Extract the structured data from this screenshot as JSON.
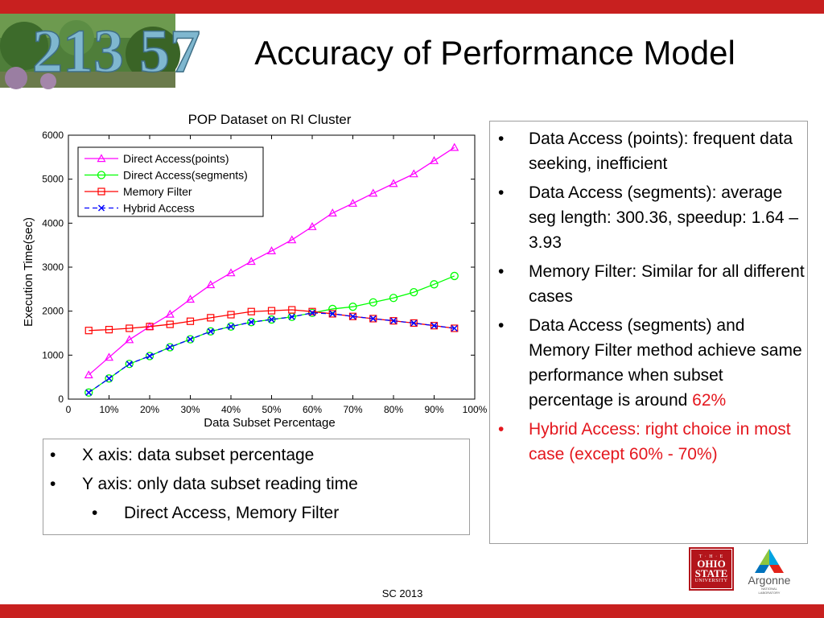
{
  "slide": {
    "title": "Accuracy of Performance Model",
    "footer": "SC 2013",
    "photo_text": "213 57",
    "logos": {
      "osu": {
        "line1": "T · H · E",
        "line2": "OHIO",
        "line3": "STATE",
        "line4": "UNIVERSITY"
      },
      "argonne": {
        "name": "Argonne",
        "sub1": "NATIONAL",
        "sub2": "LABORATORY"
      }
    },
    "colors": {
      "bar": "#c8201f",
      "highlight": "#e4171e"
    }
  },
  "note_box": {
    "items": [
      {
        "text": "X axis: data subset percentage",
        "level": 1
      },
      {
        "text": "Y axis: only data subset reading time",
        "level": 1
      },
      {
        "text": "Direct Access, Memory Filter",
        "level": 2
      }
    ]
  },
  "bullets": {
    "b1": "Data Access (points): frequent data seeking, inefficient",
    "b2": "Data Access (segments): average seg length: 300.36, speedup: 1.64 – 3.93",
    "b3": "Memory Filter: Similar for all different cases",
    "b4_text": "Data Access (segments) and Memory Filter method achieve same performance when subset percentage is around ",
    "b4_highlight": "62%",
    "b5": "Hybrid Access: right choice in most case (except 60% - 70%)",
    "marker": "•"
  },
  "chart_data": {
    "type": "line",
    "title": "POP Dataset on RI Cluster",
    "xlabel": "Data Subset Percentage",
    "ylabel": "Execution Time(sec)",
    "x": [
      5,
      10,
      15,
      20,
      25,
      30,
      35,
      40,
      45,
      50,
      55,
      60,
      65,
      70,
      75,
      80,
      85,
      90,
      95
    ],
    "xlim": [
      0,
      100
    ],
    "ylim": [
      0,
      6000
    ],
    "xticks": [
      "0",
      "10%",
      "20%",
      "30%",
      "40%",
      "50%",
      "60%",
      "70%",
      "80%",
      "90%",
      "100%"
    ],
    "yticks": [
      "0",
      "1000",
      "2000",
      "3000",
      "4000",
      "5000",
      "6000"
    ],
    "legend_position": "top-left",
    "series": [
      {
        "name": "Direct Access(points)",
        "color": "#ff00ff",
        "marker": "triangle",
        "dash": "solid",
        "values": [
          550,
          950,
          1350,
          1650,
          1930,
          2270,
          2600,
          2870,
          3130,
          3370,
          3620,
          3920,
          4230,
          4450,
          4680,
          4900,
          5120,
          5420,
          5720
        ]
      },
      {
        "name": "Direct Access(segments)",
        "color": "#00ff00",
        "marker": "circle",
        "dash": "solid",
        "values": [
          150,
          470,
          800,
          980,
          1180,
          1360,
          1540,
          1650,
          1750,
          1810,
          1870,
          1960,
          2050,
          2100,
          2200,
          2300,
          2430,
          2610,
          2800
        ]
      },
      {
        "name": "Memory Filter",
        "color": "#ff0000",
        "marker": "square",
        "dash": "solid",
        "values": [
          1560,
          1580,
          1610,
          1650,
          1700,
          1770,
          1850,
          1920,
          1990,
          2010,
          2030,
          1990,
          1940,
          1880,
          1830,
          1780,
          1730,
          1670,
          1610
        ]
      },
      {
        "name": "Hybrid Access",
        "color": "#0000ff",
        "marker": "x",
        "dash": "dashed",
        "values": [
          150,
          470,
          800,
          980,
          1180,
          1360,
          1540,
          1650,
          1750,
          1810,
          1870,
          1960,
          1940,
          1880,
          1830,
          1780,
          1730,
          1670,
          1610
        ]
      }
    ]
  }
}
